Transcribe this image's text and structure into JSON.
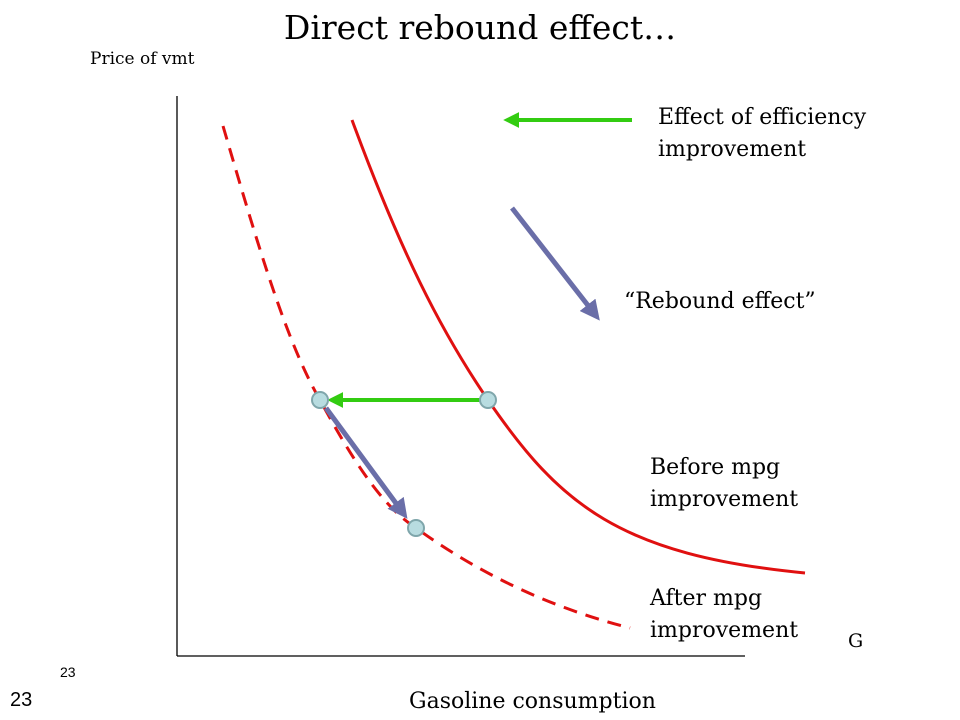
{
  "slide": {
    "title": "Direct rebound effect…",
    "page_number_small": "23",
    "page_number_large": "23"
  },
  "diagram": {
    "y_axis_label": "Price of vmt",
    "x_axis_label": "Gasoline consumption",
    "x_axis_end_label": "G",
    "efficiency_label": [
      "Effect of efficiency",
      "improvement"
    ],
    "rebound_label": "“Rebound effect”",
    "before_label": [
      "Before mpg",
      "improvement"
    ],
    "after_label": [
      "After mpg",
      "improvement"
    ],
    "colors": {
      "before_curve": "#e01010",
      "after_curve": "#e01010",
      "efficiency_arrow": "#33cc11",
      "rebound_arrow": "#6a6ea8",
      "point_fill": "#b8dce0",
      "point_stroke": "#7fa6ab",
      "axes": "#000000"
    }
  }
}
